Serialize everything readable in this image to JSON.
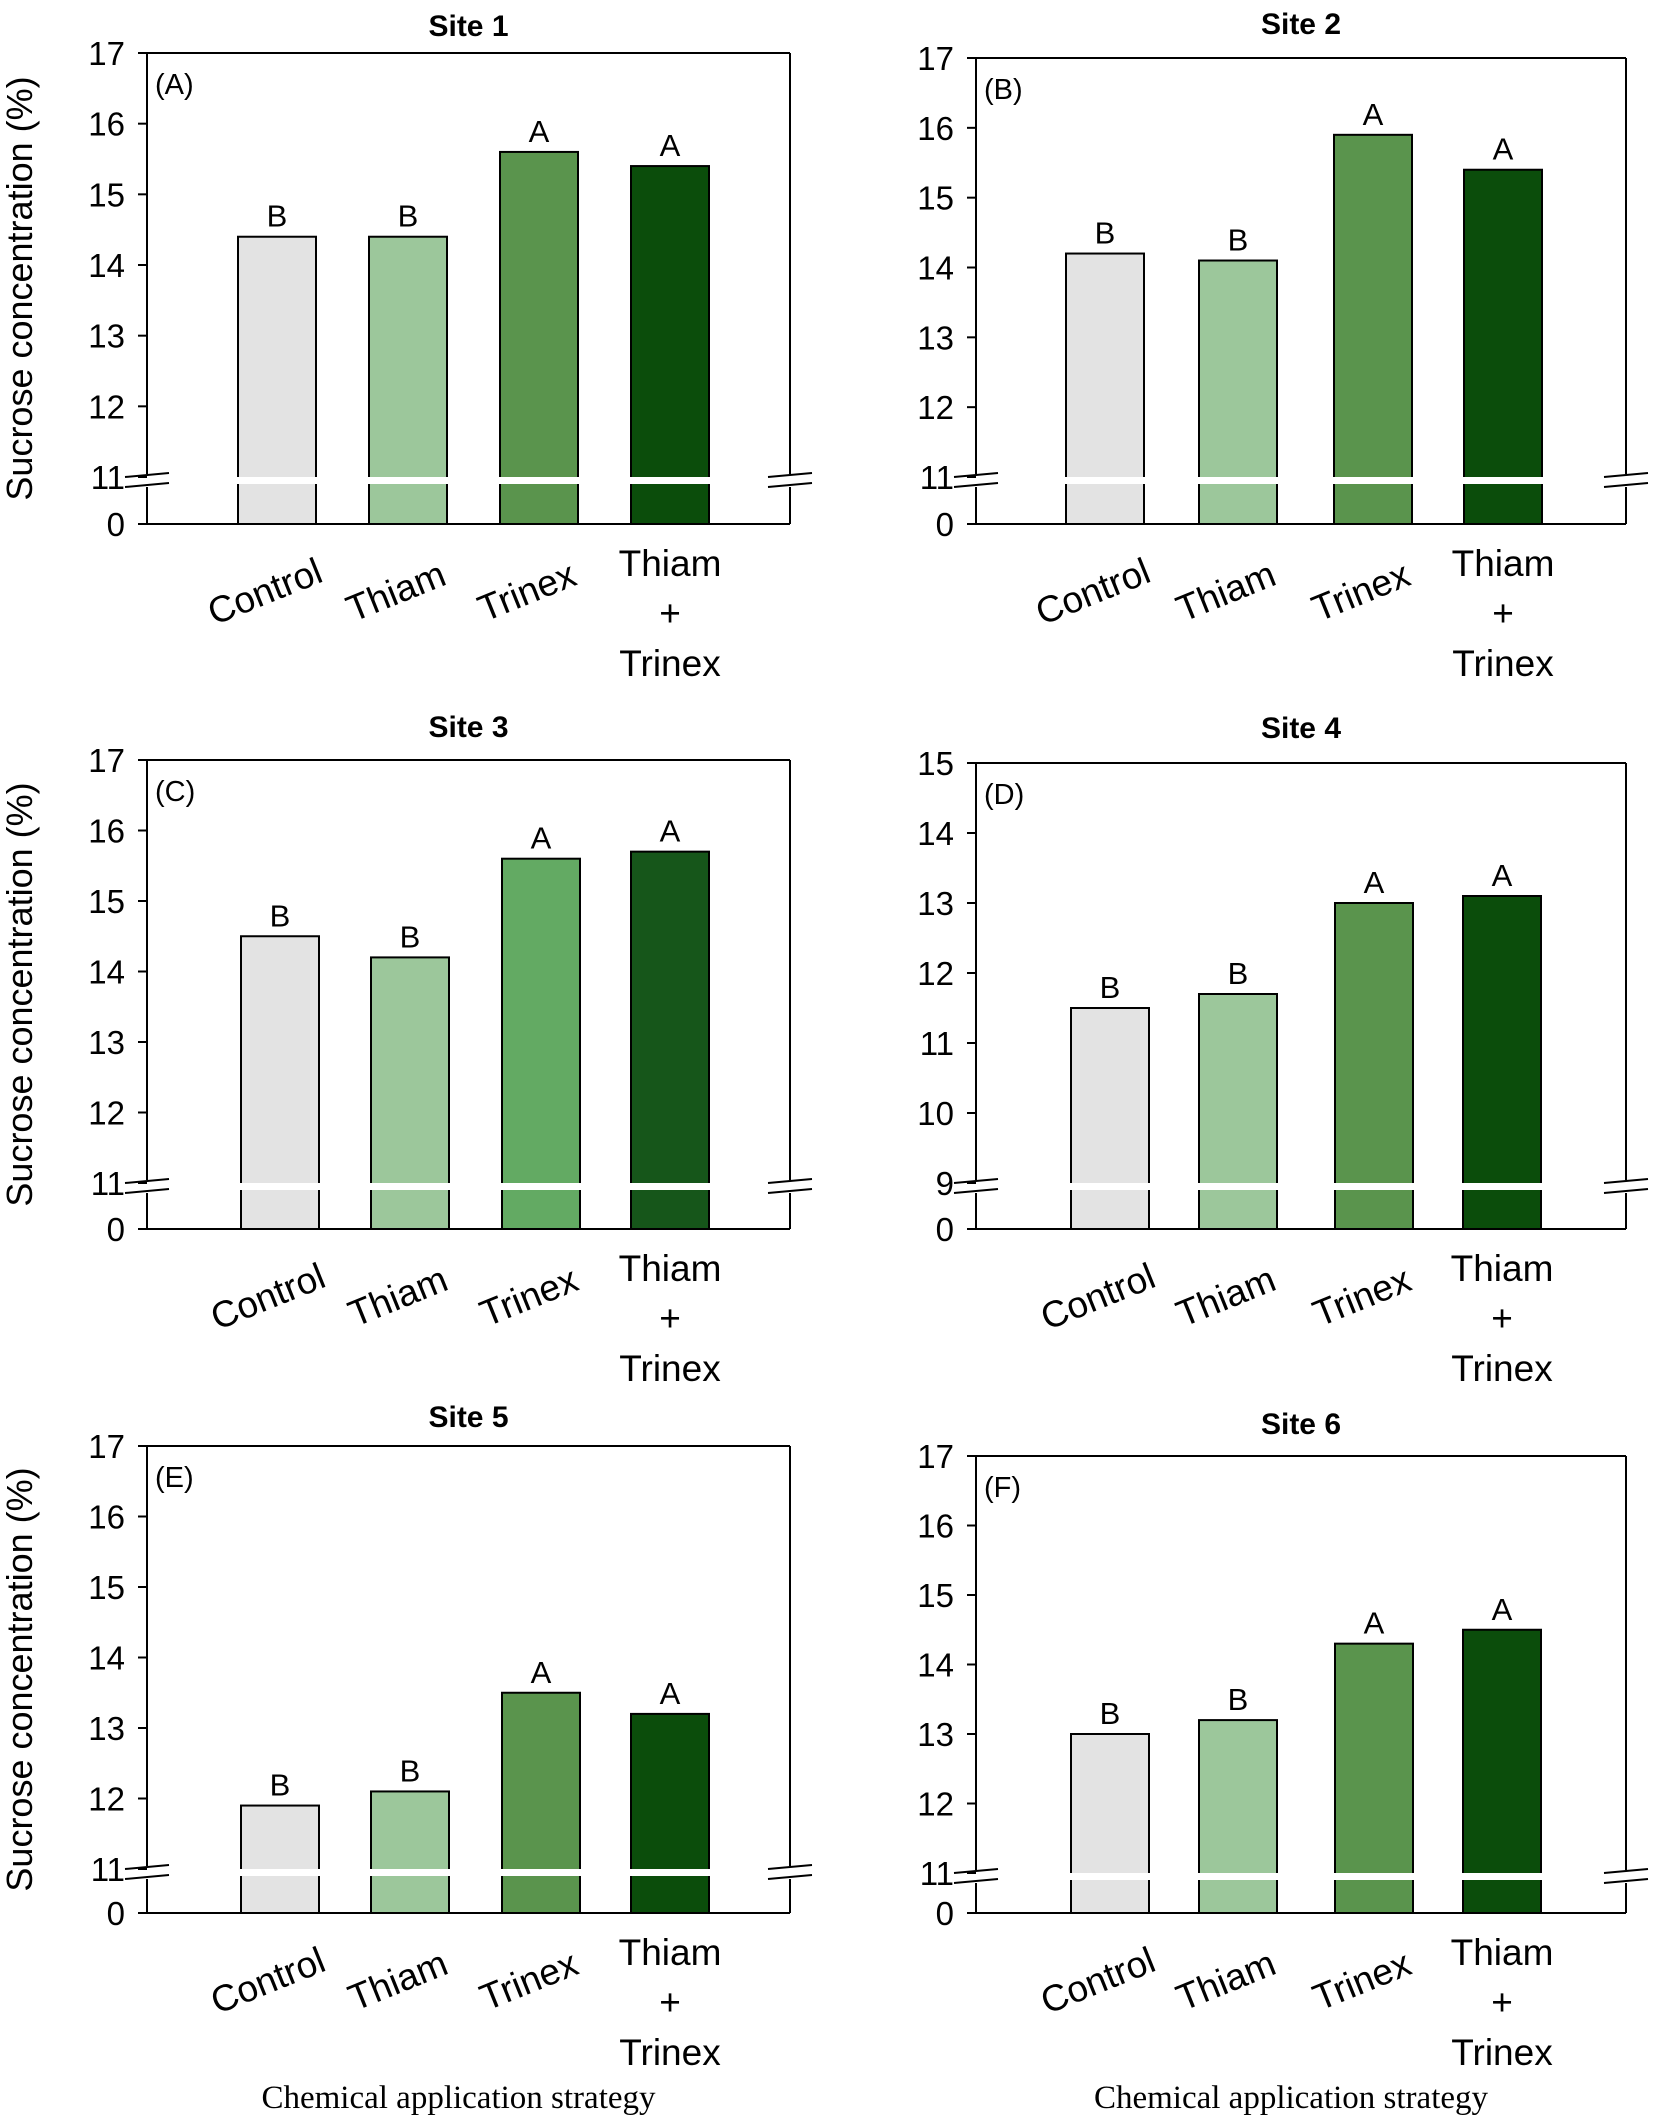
{
  "figure": {
    "ylabel": "Sucrose concentration (%)",
    "xlabel": "Chemical application strategy",
    "colors": {
      "control": "#e3e3e3",
      "thiam": "#9cc79b",
      "trinex": "#5a944d",
      "combo": "#0b4d0b",
      "trinex_site3": "#63aa63",
      "combo_site3": "#16561a",
      "axis": "#000000",
      "background": "#ffffff"
    }
  },
  "chart_data": [
    {
      "type": "bar",
      "title": "Site 1",
      "panel_label": "(A)",
      "categories": [
        "Control",
        "Thiam",
        "Trinex",
        "Thiam + Trinex"
      ],
      "category_lines": [
        [
          "Control"
        ],
        [
          "Thiam"
        ],
        [
          "Trinex"
        ],
        [
          "Thiam",
          "+",
          "Trinex"
        ]
      ],
      "values": [
        14.4,
        14.4,
        15.6,
        15.4
      ],
      "letters": [
        "B",
        "B",
        "A",
        "A"
      ],
      "ylim": [
        11,
        17
      ],
      "yticks": [
        "11",
        "12",
        "13",
        "14",
        "15",
        "16",
        "17"
      ],
      "ybreak_label": "0",
      "xlabel": "",
      "ylabel": "Sucrose concentration (%)"
    },
    {
      "type": "bar",
      "title": "Site 2",
      "panel_label": "(B)",
      "categories": [
        "Control",
        "Thiam",
        "Trinex",
        "Thiam + Trinex"
      ],
      "category_lines": [
        [
          "Control"
        ],
        [
          "Thiam"
        ],
        [
          "Trinex"
        ],
        [
          "Thiam",
          "+",
          "Trinex"
        ]
      ],
      "values": [
        14.2,
        14.1,
        15.9,
        15.4
      ],
      "letters": [
        "B",
        "B",
        "A",
        "A"
      ],
      "ylim": [
        11,
        17
      ],
      "yticks": [
        "11",
        "12",
        "13",
        "14",
        "15",
        "16",
        "17"
      ],
      "ybreak_label": "0",
      "xlabel": "",
      "ylabel": ""
    },
    {
      "type": "bar",
      "title": "Site 3",
      "panel_label": "(C)",
      "categories": [
        "Control",
        "Thiam",
        "Trinex",
        "Thiam + Trinex"
      ],
      "category_lines": [
        [
          "Control"
        ],
        [
          "Thiam"
        ],
        [
          "Trinex"
        ],
        [
          "Thiam",
          "+",
          "Trinex"
        ]
      ],
      "values": [
        14.5,
        14.2,
        15.6,
        15.7
      ],
      "letters": [
        "B",
        "B",
        "A",
        "A"
      ],
      "ylim": [
        11,
        17
      ],
      "yticks": [
        "11",
        "12",
        "13",
        "14",
        "15",
        "16",
        "17"
      ],
      "ybreak_label": "0",
      "xlabel": "",
      "ylabel": "Sucrose concentration (%)"
    },
    {
      "type": "bar",
      "title": "Site 4",
      "panel_label": "(D)",
      "categories": [
        "Control",
        "Thiam",
        "Trinex",
        "Thiam + Trinex"
      ],
      "category_lines": [
        [
          "Control"
        ],
        [
          "Thiam"
        ],
        [
          "Trinex"
        ],
        [
          "Thiam",
          "+",
          "Trinex"
        ]
      ],
      "values": [
        11.5,
        11.7,
        13.0,
        13.1
      ],
      "letters": [
        "B",
        "B",
        "A",
        "A"
      ],
      "ylim": [
        9,
        15
      ],
      "yticks": [
        "9",
        "10",
        "11",
        "12",
        "13",
        "14",
        "15"
      ],
      "ybreak_label": "0",
      "xlabel": "",
      "ylabel": ""
    },
    {
      "type": "bar",
      "title": "Site 5",
      "panel_label": "(E)",
      "categories": [
        "Control",
        "Thiam",
        "Trinex",
        "Thiam + Trinex"
      ],
      "category_lines": [
        [
          "Control"
        ],
        [
          "Thiam"
        ],
        [
          "Trinex"
        ],
        [
          "Thiam",
          "+",
          "Trinex"
        ]
      ],
      "values": [
        11.9,
        12.1,
        13.5,
        13.2
      ],
      "letters": [
        "B",
        "B",
        "A",
        "A"
      ],
      "ylim": [
        11,
        17
      ],
      "yticks": [
        "11",
        "12",
        "13",
        "14",
        "15",
        "16",
        "17"
      ],
      "ybreak_label": "0",
      "xlabel": "Chemical application strategy",
      "ylabel": "Sucrose concentration (%)"
    },
    {
      "type": "bar",
      "title": "Site 6",
      "panel_label": "(F)",
      "categories": [
        "Control",
        "Thiam",
        "Trinex",
        "Thiam + Trinex"
      ],
      "category_lines": [
        [
          "Control"
        ],
        [
          "Thiam"
        ],
        [
          "Trinex"
        ],
        [
          "Thiam",
          "+",
          "Trinex"
        ]
      ],
      "values": [
        13.0,
        13.2,
        14.3,
        14.5
      ],
      "letters": [
        "B",
        "B",
        "A",
        "A"
      ],
      "ylim": [
        11,
        17
      ],
      "yticks": [
        "11",
        "12",
        "13",
        "14",
        "15",
        "16",
        "17"
      ],
      "ybreak_label": "0",
      "xlabel": "Chemical application strategy",
      "ylabel": ""
    }
  ]
}
